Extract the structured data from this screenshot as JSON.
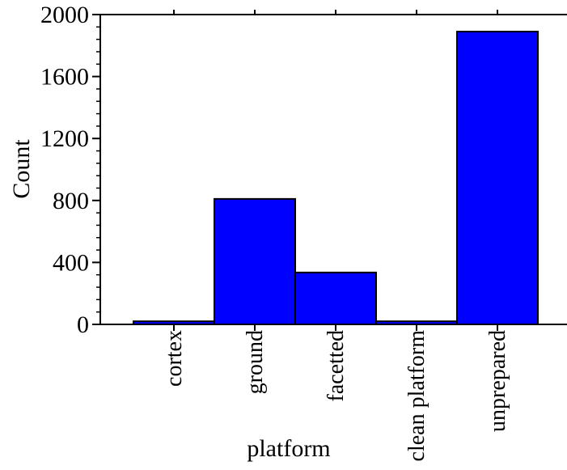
{
  "chart_data": {
    "type": "bar",
    "title": "",
    "xlabel": "platform",
    "ylabel": "Count",
    "categories": [
      "cortex",
      "ground",
      "facetted",
      "clean platform",
      "unprepared"
    ],
    "values": [
      20,
      810,
      335,
      20,
      1890
    ],
    "ylim": [
      0,
      2000
    ],
    "yticks": [
      0,
      400,
      800,
      1200,
      1600,
      2000
    ],
    "yticks_labels": [
      "0",
      "400",
      "800",
      "1200",
      "1600",
      "2000"
    ],
    "bar_color": "#0000FF",
    "grid": false,
    "legend": "none"
  }
}
